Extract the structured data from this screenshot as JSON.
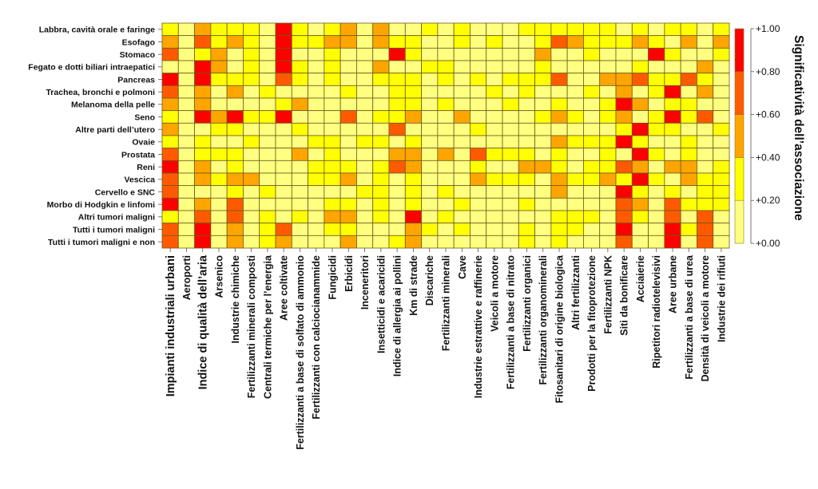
{
  "chart_data": {
    "type": "heatmap",
    "title": "",
    "rows": [
      "Labbra, cavità orale e faringe",
      "Esofago",
      "Stomaco",
      "Fegato e dotti biliari intraepatici",
      "Pancreas",
      "Trachea, bronchi e polmoni",
      "Melanoma della pelle",
      "Seno",
      "Altre parti dell’utero",
      "Ovaie",
      "Prostata",
      "Reni",
      "Vescica",
      "Cervello e SNC",
      "Morbo di Hodgkin e linfomi",
      "Altri tumori maligni",
      "Tutti i tumori maligni",
      "Tutti i tumori maligni e non"
    ],
    "columns": [
      "Impianti industriali urbani",
      "Aeroporti",
      "Indice di qualità dell’aria",
      "Arsenico",
      "Industrie chimiche",
      "Fertilizzanti minerali composti",
      "Centrali termiche per l’energia",
      "Aree coltivate",
      "Fertilizzanti a base di solfato di ammonio",
      "Fertilizzanti con calciocianammide",
      "Fungicidi",
      "Erbicidi",
      "Inceneritori",
      "Insetticidi e acaricidi",
      "Indice di allergia ai pollini",
      "Km di strade",
      "Discariche",
      "Fertilizzanti minerali",
      "Cave",
      "Industrie estrattive e raffinerie",
      "Veicoli a motore",
      "Fertilizzanti a base di nitrato",
      "Fertilizzanti organici",
      "Fertilizzanti organominerali",
      "Fitosanitari di origine biologica",
      "Altri fertilizzanti",
      "Prodotti per la fitoprotezione",
      "Fertilizzanti NPK",
      "Siti da bonificare",
      "Acciaierie",
      "Ripetitori radiotelevisivi",
      "Aree urbane",
      "Fertilizzanti a base di urea",
      "Densità di veicoli a motore",
      "Industrie dei rifiuti"
    ],
    "big_columns": [
      0,
      2
    ],
    "values_note": "Each value is the midpoint of the color band shown (bands of 0.20 width from +0.00 to +1.00).",
    "values": [
      [
        0.3,
        0.1,
        0.5,
        0.3,
        0.3,
        0.3,
        0.1,
        0.9,
        0.3,
        0.1,
        0.3,
        0.5,
        0.1,
        0.5,
        0.1,
        0.1,
        0.3,
        0.1,
        0.3,
        0.1,
        0.1,
        0.1,
        0.3,
        0.3,
        0.3,
        0.3,
        0.3,
        0.3,
        0.1,
        0.3,
        0.1,
        0.3,
        0.3,
        0.1,
        0.3
      ],
      [
        0.5,
        0.1,
        0.7,
        0.3,
        0.5,
        0.3,
        0.1,
        0.9,
        0.3,
        0.3,
        0.5,
        0.5,
        0.1,
        0.5,
        0.3,
        0.3,
        0.1,
        0.1,
        0.3,
        0.1,
        0.3,
        0.1,
        0.1,
        0.3,
        0.7,
        0.5,
        0.3,
        0.3,
        0.3,
        0.5,
        0.3,
        0.1,
        0.5,
        0.1,
        0.5
      ],
      [
        0.7,
        0.1,
        0.3,
        0.5,
        0.1,
        0.3,
        0.1,
        0.9,
        0.1,
        0.1,
        0.3,
        0.1,
        0.1,
        0.1,
        0.9,
        0.3,
        0.1,
        0.1,
        0.1,
        0.1,
        0.1,
        0.1,
        0.1,
        0.5,
        0.1,
        0.1,
        0.3,
        0.1,
        0.1,
        0.1,
        0.9,
        0.3,
        0.1,
        0.1,
        0.3
      ],
      [
        0.1,
        0.1,
        0.9,
        0.5,
        0.1,
        0.3,
        0.1,
        0.9,
        0.3,
        0.1,
        0.3,
        0.1,
        0.1,
        0.5,
        0.1,
        0.1,
        0.3,
        0.3,
        0.1,
        0.1,
        0.1,
        0.1,
        0.1,
        0.3,
        0.1,
        0.1,
        0.1,
        0.1,
        0.1,
        0.3,
        0.1,
        0.1,
        0.1,
        0.5,
        0.1
      ],
      [
        0.9,
        0.1,
        0.9,
        0.3,
        0.3,
        0.3,
        0.1,
        0.7,
        0.3,
        0.1,
        0.3,
        0.1,
        0.1,
        0.3,
        0.3,
        0.3,
        0.1,
        0.3,
        0.1,
        0.3,
        0.1,
        0.3,
        0.3,
        0.3,
        0.7,
        0.1,
        0.1,
        0.5,
        0.5,
        0.7,
        0.3,
        0.3,
        0.7,
        0.3,
        0.1
      ],
      [
        0.7,
        0.1,
        0.5,
        0.1,
        0.5,
        0.1,
        0.3,
        0.1,
        0.1,
        0.1,
        0.1,
        0.3,
        0.1,
        0.1,
        0.3,
        0.3,
        0.1,
        0.1,
        0.1,
        0.1,
        0.3,
        0.1,
        0.3,
        0.1,
        0.1,
        0.1,
        0.3,
        0.1,
        0.5,
        0.1,
        0.3,
        0.9,
        0.1,
        0.5,
        0.1
      ],
      [
        0.5,
        0.1,
        0.5,
        0.1,
        0.1,
        0.1,
        0.1,
        0.3,
        0.5,
        0.1,
        0.1,
        0.1,
        0.1,
        0.1,
        0.3,
        0.3,
        0.1,
        0.3,
        0.1,
        0.1,
        0.1,
        0.3,
        0.1,
        0.1,
        0.3,
        0.1,
        0.1,
        0.3,
        0.9,
        0.5,
        0.1,
        0.3,
        0.3,
        0.1,
        0.1
      ],
      [
        0.3,
        0.1,
        0.9,
        0.5,
        0.9,
        0.3,
        0.3,
        0.9,
        0.1,
        0.1,
        0.1,
        0.7,
        0.1,
        0.3,
        0.3,
        0.5,
        0.1,
        0.1,
        0.5,
        0.1,
        0.1,
        0.1,
        0.1,
        0.3,
        0.5,
        0.3,
        0.1,
        0.3,
        0.5,
        0.1,
        0.3,
        0.9,
        0.3,
        0.7,
        0.1
      ],
      [
        0.5,
        0.1,
        0.1,
        0.3,
        0.3,
        0.1,
        0.1,
        0.1,
        0.3,
        0.1,
        0.1,
        0.1,
        0.1,
        0.1,
        0.7,
        0.1,
        0.1,
        0.1,
        0.1,
        0.3,
        0.1,
        0.1,
        0.1,
        0.1,
        0.1,
        0.1,
        0.1,
        0.1,
        0.3,
        0.9,
        0.3,
        0.3,
        0.1,
        0.1,
        0.3
      ],
      [
        0.3,
        0.1,
        0.3,
        0.1,
        0.1,
        0.3,
        0.1,
        0.1,
        0.1,
        0.3,
        0.3,
        0.1,
        0.3,
        0.3,
        0.1,
        0.3,
        0.1,
        0.1,
        0.1,
        0.1,
        0.1,
        0.1,
        0.1,
        0.1,
        0.5,
        0.3,
        0.3,
        0.3,
        0.9,
        0.3,
        0.1,
        0.1,
        0.3,
        0.1,
        0.1
      ],
      [
        0.7,
        0.1,
        0.3,
        0.3,
        0.3,
        0.1,
        0.1,
        0.1,
        0.5,
        0.1,
        0.3,
        0.1,
        0.1,
        0.1,
        0.5,
        0.5,
        0.1,
        0.5,
        0.1,
        0.7,
        0.3,
        0.3,
        0.3,
        0.1,
        0.3,
        0.1,
        0.1,
        0.3,
        0.1,
        0.9,
        0.3,
        0.1,
        0.3,
        0.1,
        0.1
      ],
      [
        0.9,
        0.1,
        0.5,
        0.1,
        0.3,
        0.1,
        0.1,
        0.1,
        0.1,
        0.3,
        0.3,
        0.3,
        0.1,
        0.3,
        0.7,
        0.5,
        0.1,
        0.1,
        0.1,
        0.3,
        0.1,
        0.1,
        0.5,
        0.5,
        0.3,
        0.1,
        0.3,
        0.3,
        0.7,
        0.5,
        0.1,
        0.5,
        0.5,
        0.1,
        0.3
      ],
      [
        0.7,
        0.1,
        0.5,
        0.3,
        0.5,
        0.5,
        0.1,
        0.1,
        0.1,
        0.3,
        0.3,
        0.5,
        0.1,
        0.3,
        0.1,
        0.3,
        0.1,
        0.1,
        0.1,
        0.5,
        0.3,
        0.3,
        0.3,
        0.1,
        0.5,
        0.3,
        0.3,
        0.5,
        0.3,
        0.9,
        0.3,
        0.1,
        0.5,
        0.3,
        0.3
      ],
      [
        0.7,
        0.1,
        0.1,
        0.1,
        0.3,
        0.1,
        0.3,
        0.1,
        0.1,
        0.1,
        0.1,
        0.1,
        0.3,
        0.3,
        0.1,
        0.3,
        0.1,
        0.3,
        0.1,
        0.1,
        0.1,
        0.1,
        0.1,
        0.1,
        0.5,
        0.1,
        0.1,
        0.1,
        0.9,
        0.3,
        0.1,
        0.3,
        0.1,
        0.3,
        0.3
      ],
      [
        0.9,
        0.1,
        0.5,
        0.1,
        0.7,
        0.1,
        0.1,
        0.1,
        0.1,
        0.1,
        0.3,
        0.3,
        0.1,
        0.3,
        0.1,
        0.3,
        0.1,
        0.1,
        0.3,
        0.1,
        0.1,
        0.1,
        0.3,
        0.1,
        0.1,
        0.1,
        0.1,
        0.1,
        0.7,
        0.5,
        0.1,
        0.7,
        0.3,
        0.3,
        0.3
      ],
      [
        0.3,
        0.1,
        0.7,
        0.1,
        0.7,
        0.1,
        0.3,
        0.1,
        0.3,
        0.1,
        0.5,
        0.5,
        0.1,
        0.3,
        0.1,
        0.9,
        0.1,
        0.3,
        0.1,
        0.1,
        0.1,
        0.1,
        0.1,
        0.1,
        0.3,
        0.3,
        0.3,
        0.1,
        0.7,
        0.3,
        0.1,
        0.7,
        0.1,
        0.7,
        0.1
      ],
      [
        0.7,
        0.1,
        0.9,
        0.1,
        0.5,
        0.1,
        0.3,
        0.7,
        0.1,
        0.1,
        0.3,
        0.3,
        0.1,
        0.1,
        0.1,
        0.5,
        0.3,
        0.1,
        0.3,
        0.1,
        0.1,
        0.1,
        0.3,
        0.1,
        0.3,
        0.3,
        0.1,
        0.1,
        0.9,
        0.1,
        0.1,
        0.9,
        0.3,
        0.7,
        0.1
      ],
      [
        0.7,
        0.1,
        0.9,
        0.1,
        0.5,
        0.1,
        0.3,
        0.5,
        0.1,
        0.1,
        0.1,
        0.5,
        0.1,
        0.1,
        0.3,
        0.5,
        0.1,
        0.1,
        0.1,
        0.1,
        0.1,
        0.1,
        0.3,
        0.1,
        0.3,
        0.1,
        0.1,
        0.1,
        0.7,
        0.1,
        0.1,
        0.9,
        0.1,
        0.7,
        0.1
      ]
    ],
    "color_scale": {
      "title": "Significatività dell’associazione",
      "position": "right",
      "min": 0.0,
      "max": 1.0,
      "bands": [
        {
          "from": 0.0,
          "to": 0.2,
          "color": "#FFFF80"
        },
        {
          "from": 0.2,
          "to": 0.4,
          "color": "#FFFF00"
        },
        {
          "from": 0.4,
          "to": 0.6,
          "color": "#FFA500"
        },
        {
          "from": 0.6,
          "to": 0.8,
          "color": "#FF5A00"
        },
        {
          "from": 0.8,
          "to": 1.0,
          "color": "#FF0000"
        }
      ],
      "tick_labels": [
        "+0.00",
        "+0.20",
        "+0.40",
        "+0.60",
        "+0.80",
        "+1.00"
      ],
      "tick_values": [
        0.0,
        0.2,
        0.4,
        0.6,
        0.8,
        1.0
      ]
    },
    "xlabel": "",
    "ylabel": "",
    "grid": true,
    "legend_placement": "right"
  }
}
